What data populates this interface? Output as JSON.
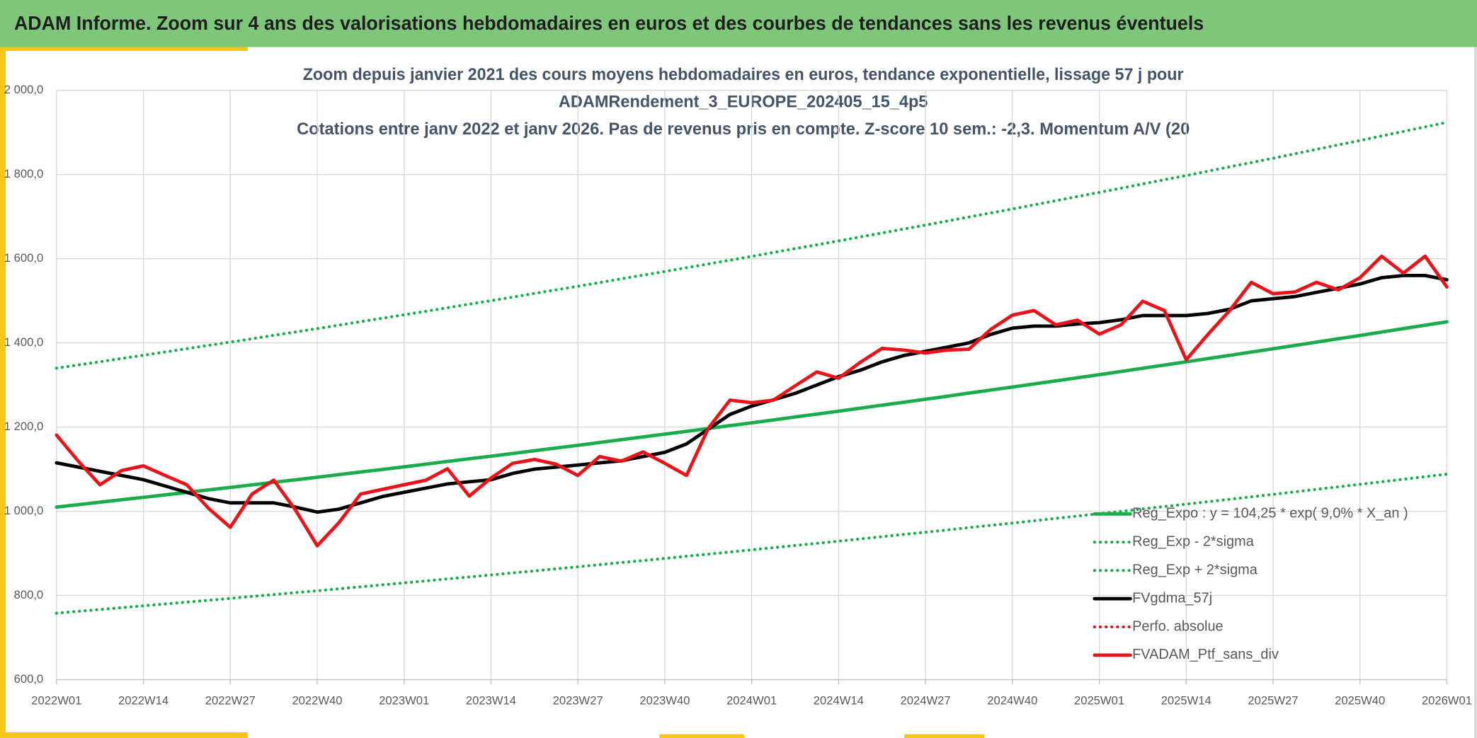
{
  "header": {
    "title": "ADAM Informe. Zoom sur 4 ans des valorisations hebdomadaires en euros et des courbes de tendances sans les revenus éventuels"
  },
  "chart_data": {
    "type": "line",
    "title": [
      "Zoom depuis janvier 2021 des cours moyens hebdomadaires en euros, tendance exponentielle, lissage 57 j pour",
      "ADAMRendement_3_EUROPE_202405_15_4p5",
      "Cotations entre janv 2022 et janv 2026. Pas de revenus pris en compte. Z-score 10 sem.: -2,3. Momentum A/V (20"
    ],
    "categories": [
      "2022W01",
      null,
      null,
      null,
      "2022W14",
      null,
      null,
      null,
      "2022W27",
      null,
      null,
      null,
      "2022W40",
      null,
      null,
      null,
      "2023W01",
      null,
      null,
      null,
      "2023W14",
      null,
      null,
      null,
      "2023W27",
      null,
      null,
      null,
      "2023W40",
      null,
      null,
      null,
      "2024W01",
      null,
      null,
      null,
      "2024W14",
      null,
      null,
      null,
      "2024W27",
      null,
      null,
      null,
      "2024W40",
      null,
      null,
      null,
      "2025W01",
      null,
      null,
      null,
      "2025W14",
      null,
      null,
      null,
      "2025W27",
      null,
      null,
      null,
      "2025W40",
      null,
      null,
      null,
      "2026W01"
    ],
    "ylim": [
      600,
      2000
    ],
    "yticks": [
      {
        "value": 600,
        "label": "600,0"
      },
      {
        "value": 800,
        "label": "800,0"
      },
      {
        "value": 1000,
        "label": "1 000,0"
      },
      {
        "value": 1200,
        "label": "1 200,0"
      },
      {
        "value": 1400,
        "label": "1 400,0"
      },
      {
        "value": 1600,
        "label": "1 600,0"
      },
      {
        "value": 1800,
        "label": "1 800,0"
      },
      {
        "value": 2000,
        "label": "2 000,0"
      }
    ],
    "grid": true,
    "legend": "lower right",
    "series": [
      {
        "name": "Reg_Expo : y = 104,25 * exp( 9,0% *  X_an )",
        "color": "#1aab4b",
        "dash": "solid",
        "values": [
          1010,
          1015.8,
          1021.6,
          1027.3,
          1033.1,
          1039.0,
          1044.9,
          1050.8,
          1056.7,
          1062.8,
          1068.8,
          1074.9,
          1080.9,
          1087.1,
          1093.3,
          1099.4,
          1105.6,
          1111.9,
          1118.3,
          1124.6,
          1130.9,
          1137.4,
          1143.8,
          1150.3,
          1156.7,
          1163.3,
          1170.0,
          1176.6,
          1183.2,
          1190.0,
          1196.7,
          1203.5,
          1210.2,
          1217.1,
          1224.1,
          1231.0,
          1237.9,
          1245.0,
          1252.1,
          1259.1,
          1266.2,
          1273.4,
          1280.7,
          1287.9,
          1295.1,
          1302.5,
          1309.9,
          1317.3,
          1324.7,
          1332.3,
          1339.9,
          1347.4,
          1355.0,
          1362.8,
          1370.5,
          1378.3,
          1386.0,
          1393.9,
          1401.9,
          1409.8,
          1417.7,
          1425.8,
          1433.9,
          1442.0,
          1450.1
        ]
      },
      {
        "name": "Reg_Exp - 2*sigma",
        "color": "#1aab4b",
        "dash": "dotted",
        "values": [
          758,
          762.3,
          766.6,
          771.0,
          775.3,
          779.7,
          784.2,
          788.6,
          793.0,
          797.6,
          802.1,
          806.7,
          811.2,
          815.9,
          820.5,
          825.2,
          829.8,
          834.5,
          839.3,
          844.0,
          848.7,
          853.6,
          858.4,
          863.3,
          868.1,
          873.1,
          878.1,
          883.0,
          888.0,
          893.1,
          898.2,
          903.2,
          908.3,
          913.5,
          918.7,
          923.8,
          929.0,
          934.3,
          939.7,
          945.0,
          950.3,
          955.7,
          961.2,
          966.6,
          972.0,
          977.6,
          983.1,
          988.7,
          994.2,
          999.9,
          1005.6,
          1011.2,
          1016.9,
          1022.7,
          1028.6,
          1034.4,
          1040.2,
          1046.2,
          1052.1,
          1058.1,
          1064.0,
          1070.1,
          1076.1,
          1082.2,
          1088.3
        ]
      },
      {
        "name": "Reg_Exp + 2*sigma",
        "color": "#1aab4b",
        "dash": "dotted",
        "values": [
          1340,
          1347.7,
          1355.3,
          1363.0,
          1370.6,
          1378.4,
          1386.3,
          1394.1,
          1401.9,
          1409.9,
          1418.0,
          1426.0,
          1434.0,
          1442.2,
          1450.4,
          1458.6,
          1466.8,
          1475.2,
          1483.6,
          1492.0,
          1500.4,
          1508.9,
          1517.5,
          1526.0,
          1534.6,
          1543.4,
          1552.2,
          1560.9,
          1569.7,
          1578.7,
          1587.7,
          1596.6,
          1605.6,
          1614.8,
          1624.0,
          1633.1,
          1642.3,
          1651.7,
          1661.1,
          1670.5,
          1679.9,
          1689.5,
          1699.1,
          1708.6,
          1718.2,
          1728.0,
          1737.9,
          1747.7,
          1757.5,
          1767.6,
          1777.6,
          1787.7,
          1797.7,
          1808.0,
          1818.3,
          1828.5,
          1838.8,
          1849.3,
          1859.9,
          1870.4,
          1880.9,
          1891.7,
          1902.4,
          1913.2,
          1923.9
        ]
      },
      {
        "name": "FVgdma_57j",
        "color": "#000000",
        "dash": "solid",
        "values": [
          1115,
          1105,
          1095,
          1085,
          1075,
          1060,
          1045,
          1030,
          1020,
          1020,
          1020,
          1010,
          998,
          1005,
          1020,
          1035,
          1045,
          1055,
          1065,
          1070,
          1075,
          1090,
          1100,
          1105,
          1110,
          1115,
          1120,
          1130,
          1140,
          1160,
          1195,
          1230,
          1250,
          1265,
          1280,
          1300,
          1320,
          1335,
          1355,
          1370,
          1380,
          1390,
          1400,
          1420,
          1435,
          1440,
          1440,
          1445,
          1448,
          1455,
          1465,
          1465,
          1465,
          1470,
          1480,
          1500,
          1505,
          1510,
          1520,
          1530,
          1540,
          1555,
          1560,
          1560,
          1550
        ]
      },
      {
        "name": "Perfo. absolue",
        "color": "#e8141a",
        "dash": "dotted",
        "values": [
          null,
          null,
          null,
          null,
          null,
          null,
          null,
          null,
          null,
          null,
          null,
          null,
          null,
          null,
          null,
          null,
          null,
          null,
          null,
          null,
          null,
          null,
          null,
          null,
          null,
          null,
          null,
          null,
          null,
          null,
          null,
          null,
          null,
          null,
          null,
          null,
          null,
          null,
          null,
          null,
          null,
          null,
          null,
          null,
          null,
          null,
          null,
          null,
          null,
          null,
          null,
          null,
          null,
          null,
          null,
          null,
          null,
          null,
          null,
          null,
          null,
          null,
          null,
          null,
          null
        ]
      },
      {
        "name": "FVADAM_Ptf_sans_div",
        "color": "#e8141a",
        "dash": "solid",
        "values": [
          1181,
          1119,
          1063,
          1097,
          1108,
          1085,
          1063,
          1007,
          962,
          1041,
          1074,
          1003,
          918,
          973,
          1041,
          1052,
          1063,
          1074,
          1101,
          1036,
          1079,
          1114,
          1123,
          1112,
          1085,
          1130,
          1119,
          1141,
          1114,
          1085,
          1197,
          1264,
          1258,
          1264,
          1298,
          1331,
          1316,
          1354,
          1387,
          1383,
          1376,
          1383,
          1385,
          1432,
          1466,
          1477,
          1443,
          1454,
          1421,
          1443,
          1499,
          1477,
          1360,
          1420,
          1477,
          1544,
          1517,
          1521,
          1544,
          1526,
          1555,
          1606,
          1566,
          1606,
          1533
        ]
      }
    ]
  }
}
